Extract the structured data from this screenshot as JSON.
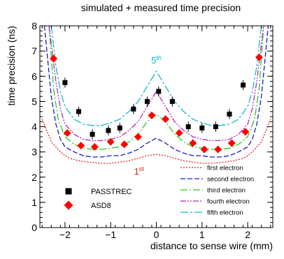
{
  "chart_data": {
    "type": "scatter",
    "title": "simulated + measured time precision",
    "xlabel": "distance to sense wire (mm)",
    "ylabel": "time precision (ns)",
    "xlim": [
      -2.55,
      2.55
    ],
    "ylim": [
      0,
      8
    ],
    "x_ticks": [
      -2,
      -1,
      0,
      1,
      2
    ],
    "x_tick_labels": [
      "−2",
      "−1",
      "0",
      "1",
      "2"
    ],
    "y_ticks": [
      0,
      1,
      2,
      3,
      4,
      5,
      6,
      7,
      8
    ],
    "y_tick_labels": [
      "0",
      "1",
      "2",
      "3",
      "4",
      "5",
      "6",
      "7",
      "8"
    ],
    "grid": false,
    "annotations": [
      {
        "text": "5th",
        "base": "5",
        "sup": "th",
        "x": 0.0,
        "y": 6.5,
        "color": "#00bbbb"
      },
      {
        "text": "1st",
        "base": "1",
        "sup": "st",
        "x": -0.38,
        "y": 2.1,
        "color": "#e8201c"
      }
    ],
    "series": [
      {
        "name": "first electron",
        "kind": "line",
        "style": "dotted",
        "color": "#e8201c",
        "x": [
          -2.5,
          -2.3,
          -2.1,
          -2.0,
          -1.9,
          -1.7,
          -1.5,
          -1.2,
          -1.0,
          -0.8,
          -0.6,
          -0.4,
          -0.2,
          0.0,
          0.2,
          0.4,
          0.6,
          0.8,
          1.0,
          1.2,
          1.5,
          1.7,
          1.9,
          2.0,
          2.1,
          2.3,
          2.5
        ],
        "y": [
          4.3,
          3.4,
          3.0,
          2.85,
          2.75,
          2.65,
          2.6,
          2.55,
          2.55,
          2.6,
          2.65,
          2.75,
          2.85,
          2.9,
          2.85,
          2.75,
          2.65,
          2.6,
          2.55,
          2.55,
          2.6,
          2.65,
          2.75,
          2.85,
          3.0,
          3.4,
          4.3
        ]
      },
      {
        "name": "second electron",
        "kind": "line",
        "style": "dashed",
        "color": "#1a1acc",
        "x": [
          -2.45,
          -2.3,
          -2.2,
          -2.1,
          -2.0,
          -1.8,
          -1.6,
          -1.4,
          -1.2,
          -1.0,
          -0.8,
          -0.6,
          -0.4,
          -0.2,
          0.0,
          0.2,
          0.4,
          0.6,
          0.8,
          1.0,
          1.2,
          1.4,
          1.6,
          1.8,
          2.0,
          2.1,
          2.2,
          2.3,
          2.45
        ],
        "y": [
          8.0,
          5.2,
          4.1,
          3.5,
          3.2,
          3.0,
          2.85,
          2.8,
          2.8,
          2.85,
          2.85,
          2.95,
          3.1,
          3.35,
          3.55,
          3.35,
          3.1,
          2.95,
          2.85,
          2.85,
          2.8,
          2.8,
          2.85,
          3.0,
          3.2,
          3.5,
          4.1,
          5.2,
          8.0
        ]
      },
      {
        "name": "third electron",
        "kind": "line",
        "style": "dashdot",
        "color": "#22cc22",
        "x": [
          -2.35,
          -2.25,
          -2.15,
          -2.0,
          -1.8,
          -1.6,
          -1.4,
          -1.2,
          -1.0,
          -0.8,
          -0.6,
          -0.4,
          -0.2,
          0.0,
          0.2,
          0.4,
          0.6,
          0.8,
          1.0,
          1.2,
          1.4,
          1.6,
          1.8,
          2.0,
          2.15,
          2.25,
          2.35
        ],
        "y": [
          8.0,
          5.5,
          4.3,
          3.6,
          3.3,
          3.15,
          3.1,
          3.1,
          3.15,
          3.2,
          3.4,
          3.7,
          4.2,
          4.5,
          4.2,
          3.7,
          3.4,
          3.2,
          3.15,
          3.1,
          3.1,
          3.15,
          3.3,
          3.6,
          4.3,
          5.5,
          8.0
        ]
      },
      {
        "name": "fourth electron",
        "kind": "line",
        "style": "dashdotdot",
        "color": "#bb22bb",
        "x": [
          -2.35,
          -2.2,
          -2.1,
          -2.0,
          -1.8,
          -1.6,
          -1.4,
          -1.2,
          -1.0,
          -0.8,
          -0.6,
          -0.4,
          -0.2,
          0.0,
          0.2,
          0.4,
          0.6,
          0.8,
          1.0,
          1.2,
          1.4,
          1.6,
          1.8,
          2.0,
          2.1,
          2.2,
          2.35
        ],
        "y": [
          8.0,
          5.8,
          4.7,
          4.1,
          3.7,
          3.5,
          3.45,
          3.45,
          3.5,
          3.6,
          3.85,
          4.2,
          4.8,
          5.4,
          4.8,
          4.2,
          3.85,
          3.6,
          3.5,
          3.45,
          3.45,
          3.5,
          3.7,
          4.1,
          4.7,
          5.8,
          8.0
        ]
      },
      {
        "name": "fifth electron",
        "kind": "line",
        "style": "longdashdot",
        "color": "#11bbcc",
        "x": [
          -2.3,
          -2.2,
          -2.1,
          -2.0,
          -1.8,
          -1.6,
          -1.4,
          -1.2,
          -1.0,
          -0.8,
          -0.6,
          -0.4,
          -0.2,
          0.0,
          0.2,
          0.4,
          0.6,
          0.8,
          1.0,
          1.2,
          1.4,
          1.6,
          1.8,
          2.0,
          2.1,
          2.2,
          2.3
        ],
        "y": [
          8.0,
          6.4,
          5.4,
          4.8,
          4.3,
          4.1,
          4.05,
          4.05,
          4.15,
          4.3,
          4.6,
          5.0,
          5.6,
          6.2,
          5.6,
          5.0,
          4.6,
          4.3,
          4.15,
          4.05,
          4.05,
          4.1,
          4.3,
          4.8,
          5.4,
          6.4,
          8.0
        ]
      },
      {
        "name": "PASSTREC",
        "kind": "marker",
        "marker": "square",
        "color": "#000000",
        "x": [
          -2.0,
          -1.7,
          -1.4,
          -1.05,
          -0.8,
          -0.5,
          -0.2,
          0.05,
          0.35,
          0.7,
          1.0,
          1.3,
          1.6,
          1.9
        ],
        "y": [
          5.75,
          4.6,
          3.7,
          3.85,
          3.95,
          4.7,
          5.0,
          5.4,
          5.0,
          4.0,
          3.95,
          4.0,
          4.5,
          5.65
        ],
        "yerr": [
          0.2,
          0.2,
          0.2,
          0.2,
          0.2,
          0.2,
          0.2,
          0.2,
          0.2,
          0.2,
          0.2,
          0.2,
          0.2,
          0.2
        ]
      },
      {
        "name": "ASD8",
        "kind": "marker",
        "marker": "diamond",
        "color": "#ff0000",
        "x": [
          -2.25,
          -1.95,
          -1.65,
          -1.35,
          -1.0,
          -0.7,
          -0.4,
          -0.1,
          0.2,
          0.5,
          0.8,
          1.05,
          1.35,
          1.65,
          1.95,
          2.25
        ],
        "y": [
          6.7,
          3.75,
          3.25,
          3.2,
          3.4,
          3.3,
          3.6,
          4.45,
          4.3,
          3.75,
          3.35,
          3.1,
          3.1,
          3.35,
          3.8,
          6.75
        ]
      }
    ],
    "legend_lines": {
      "placement": "bottom-right",
      "entries": [
        "first electron",
        "second electron",
        "third electron",
        "fourth electron",
        "fifth electron"
      ]
    },
    "legend_markers": {
      "placement": "bottom-left",
      "entries": [
        "PASSTREC",
        "ASD8"
      ]
    }
  }
}
